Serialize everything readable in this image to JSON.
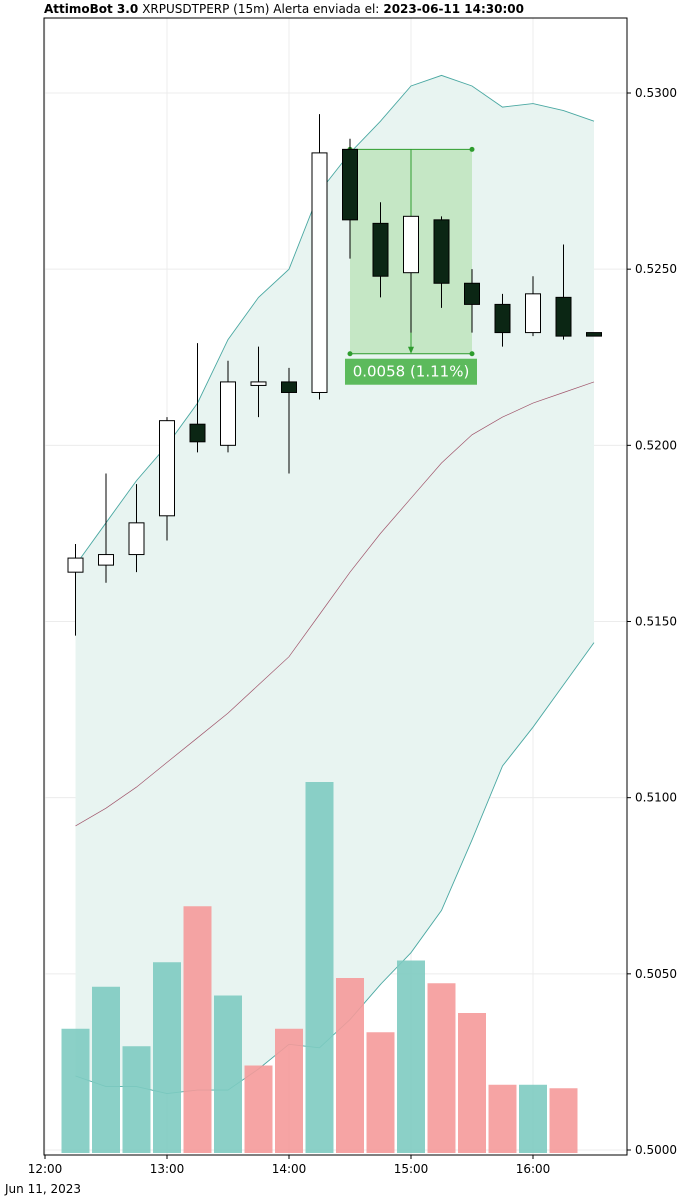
{
  "header": {
    "bot_name": "AttimoBot 3.0",
    "pair_info": "XRPUSDTPERP (15m) Alerta enviada el:",
    "timestamp": "2023-06-11 14:30:00"
  },
  "colors": {
    "bullish_fill": "#ffffff",
    "bearish_fill": "#0b2614",
    "band_line": "#4aa8a2",
    "band_fill": "#e8f4f1",
    "mid_line": "#a0556b",
    "volume_up": "#7ecbc1",
    "volume_down": "#f59a9a",
    "measure_fill": "#b9e3b6",
    "measure_line": "#2e9c2e",
    "measure_label_bg": "#5cba5c"
  },
  "chart_data": {
    "type": "candlestick",
    "x_unit": "time (15m candles), Jun 11, 2023",
    "xlim": [
      "12:00",
      "16:45"
    ],
    "ylim": [
      0.5,
      0.5316
    ],
    "x_ticks": [
      "12:00",
      "13:00",
      "14:00",
      "15:00",
      "16:00"
    ],
    "x_date_label": "Jun 11, 2023",
    "y_ticks": [
      "0.5000",
      "0.5050",
      "0.5100",
      "0.5150",
      "0.5200",
      "0.5250",
      "0.5300"
    ],
    "grid": true,
    "candles": [
      {
        "t": "12:15",
        "open": 0.5164,
        "high": 0.5172,
        "low": 0.5146,
        "close": 0.5168
      },
      {
        "t": "12:30",
        "open": 0.5166,
        "high": 0.5192,
        "low": 0.5161,
        "close": 0.5169
      },
      {
        "t": "12:45",
        "open": 0.5169,
        "high": 0.5189,
        "low": 0.5164,
        "close": 0.5178
      },
      {
        "t": "13:00",
        "open": 0.518,
        "high": 0.5208,
        "low": 0.5173,
        "close": 0.5207
      },
      {
        "t": "13:15",
        "open": 0.5206,
        "high": 0.5229,
        "low": 0.5198,
        "close": 0.5201
      },
      {
        "t": "13:30",
        "open": 0.52,
        "high": 0.5224,
        "low": 0.5198,
        "close": 0.5218
      },
      {
        "t": "13:45",
        "open": 0.5217,
        "high": 0.5228,
        "low": 0.5208,
        "close": 0.5218
      },
      {
        "t": "14:00",
        "open": 0.5218,
        "high": 0.5222,
        "low": 0.5192,
        "close": 0.5215
      },
      {
        "t": "14:15",
        "open": 0.5215,
        "high": 0.5294,
        "low": 0.5213,
        "close": 0.5283
      },
      {
        "t": "14:30",
        "open": 0.5284,
        "high": 0.5287,
        "low": 0.5253,
        "close": 0.5264
      },
      {
        "t": "14:45",
        "open": 0.5263,
        "high": 0.5269,
        "low": 0.5242,
        "close": 0.5248
      },
      {
        "t": "15:00",
        "open": 0.5249,
        "high": 0.5265,
        "low": 0.5232,
        "close": 0.5265
      },
      {
        "t": "15:15",
        "open": 0.5264,
        "high": 0.5265,
        "low": 0.5239,
        "close": 0.5246
      },
      {
        "t": "15:30",
        "open": 0.5246,
        "high": 0.525,
        "low": 0.5232,
        "close": 0.524
      },
      {
        "t": "15:45",
        "open": 0.524,
        "high": 0.5243,
        "low": 0.5228,
        "close": 0.5232
      },
      {
        "t": "16:00",
        "open": 0.5232,
        "high": 0.5248,
        "low": 0.5231,
        "close": 0.5243
      },
      {
        "t": "16:15",
        "open": 0.5242,
        "high": 0.5257,
        "low": 0.523,
        "close": 0.5231
      },
      {
        "t": "16:30",
        "open": 0.5232,
        "high": 0.5232,
        "low": 0.5231,
        "close": 0.5231
      }
    ],
    "bollinger": {
      "t": [
        "12:15",
        "12:30",
        "12:45",
        "13:00",
        "13:15",
        "13:30",
        "13:45",
        "14:00",
        "14:15",
        "14:30",
        "14:45",
        "15:00",
        "15:15",
        "15:30",
        "15:45",
        "16:00",
        "16:15",
        "16:30"
      ],
      "upper": [
        0.5166,
        0.5178,
        0.519,
        0.52,
        0.5212,
        0.523,
        0.5242,
        0.525,
        0.5272,
        0.5283,
        0.5292,
        0.5302,
        0.5305,
        0.5302,
        0.5296,
        0.5297,
        0.5295,
        0.5292
      ],
      "middle": [
        0.5092,
        0.5097,
        0.5103,
        0.511,
        0.5117,
        0.5124,
        0.5132,
        0.514,
        0.5152,
        0.5164,
        0.5175,
        0.5185,
        0.5195,
        0.5203,
        0.5208,
        0.5212,
        0.5215,
        0.5218
      ],
      "lower": [
        0.5021,
        0.5018,
        0.5018,
        0.5016,
        0.5017,
        0.5017,
        0.5023,
        0.503,
        0.5029,
        0.5037,
        0.5047,
        0.5056,
        0.5068,
        0.5088,
        0.5109,
        0.512,
        0.5132,
        0.5144
      ]
    },
    "volume": {
      "t": [
        "12:15",
        "12:30",
        "12:45",
        "13:00",
        "13:15",
        "13:30",
        "13:45",
        "14:00",
        "14:15",
        "14:30",
        "14:45",
        "15:00",
        "15:15",
        "15:30",
        "15:45",
        "16:00",
        "16:15"
      ],
      "values": [
        35.5,
        47.5,
        30.5,
        54.5,
        70.5,
        45.0,
        25.0,
        35.5,
        106.0,
        50.0,
        34.5,
        55.0,
        48.5,
        40.0,
        19.5,
        19.5,
        18.5
      ],
      "direction": [
        "up",
        "up",
        "up",
        "up",
        "down",
        "up",
        "down",
        "down",
        "up",
        "down",
        "down",
        "up",
        "down",
        "down",
        "down",
        "up",
        "down"
      ]
    },
    "measure": {
      "t_start": "14:30",
      "t_end": "15:30",
      "price_high": 0.5284,
      "price_low": 0.5226,
      "label": "0.0058 (1.11%)"
    }
  }
}
